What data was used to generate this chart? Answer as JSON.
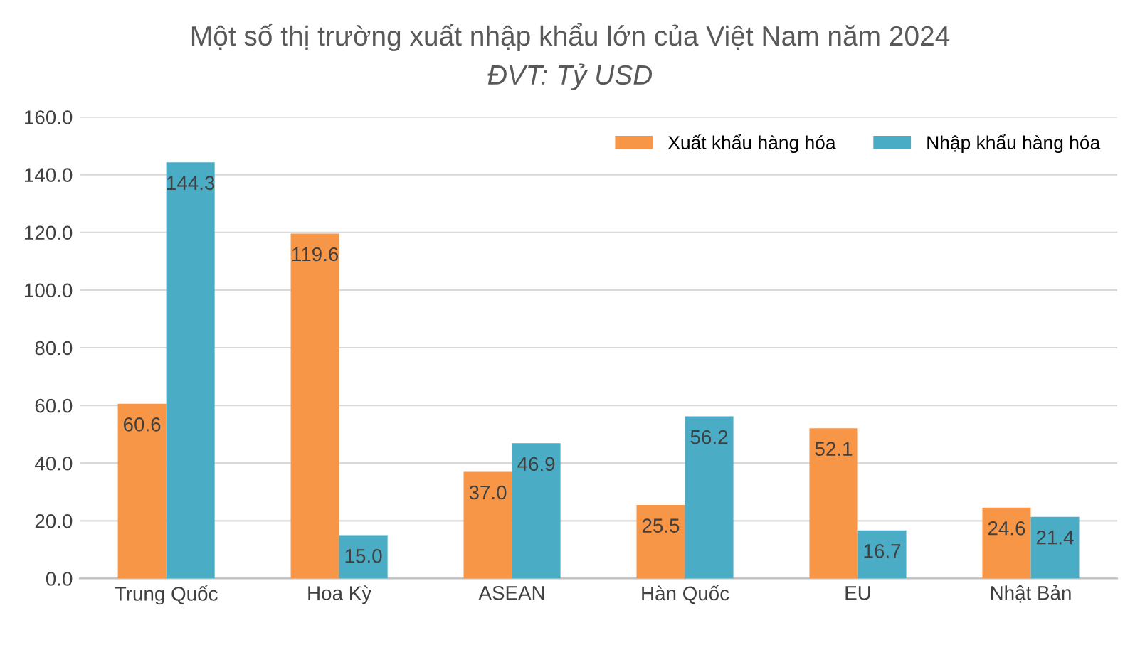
{
  "chart_data": {
    "type": "bar",
    "title": "Một số thị trường xuất nhập khẩu lớn của Việt Nam năm 2024",
    "subtitle": "ĐVT: Tỷ USD",
    "categories": [
      "Trung Quốc",
      "Hoa Kỳ",
      "ASEAN",
      "Hàn Quốc",
      "EU",
      "Nhật Bản"
    ],
    "series": [
      {
        "name": "Xuất khẩu hàng hóa",
        "color": "#f79646",
        "values": [
          60.6,
          119.6,
          37.0,
          25.5,
          52.1,
          24.6
        ],
        "value_labels": [
          "60.6",
          "119.6",
          "37.0",
          "25.5",
          "52.1",
          "24.6"
        ]
      },
      {
        "name": "Nhập khẩu hàng hóa",
        "color": "#4bacc6",
        "values": [
          144.3,
          15.0,
          46.9,
          56.2,
          16.7,
          21.4
        ],
        "value_labels": [
          "144.3",
          "15.0",
          "46.9",
          "56.2",
          "16.7",
          "21.4"
        ]
      }
    ],
    "ylim": [
      0,
      160
    ],
    "yticks": [
      {
        "value": 0,
        "label": "0.0"
      },
      {
        "value": 20,
        "label": "20.0"
      },
      {
        "value": 40,
        "label": "40.0"
      },
      {
        "value": 60,
        "label": "60.0"
      },
      {
        "value": 80,
        "label": "80.0"
      },
      {
        "value": 100,
        "label": "100.0"
      },
      {
        "value": 120,
        "label": "120.0"
      },
      {
        "value": 140,
        "label": "140.0"
      },
      {
        "value": 160,
        "label": "160.0"
      }
    ],
    "grid": "y",
    "legend": "top right"
  }
}
